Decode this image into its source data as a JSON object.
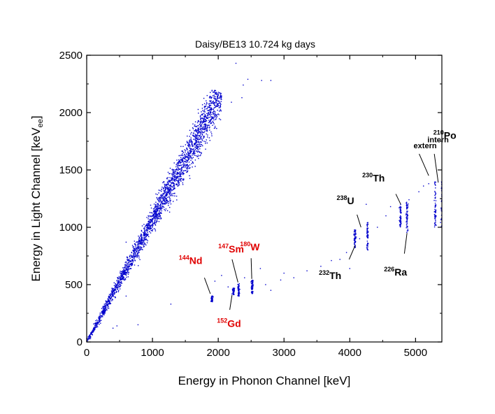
{
  "chart_data": {
    "type": "scatter",
    "title": "Daisy/BE13 10.724 kg days",
    "xlabel": "Energy in Phonon Channel [keV]",
    "ylabel": {
      "main": "Energy in Light Channel [keV",
      "subscript": "ee",
      "close": "]"
    },
    "xlim": [
      0,
      5400
    ],
    "ylim": [
      0,
      2500
    ],
    "xticks": [
      0,
      1000,
      2000,
      3000,
      4000,
      5000
    ],
    "yticks": [
      0,
      500,
      1000,
      1500,
      2000,
      2500
    ],
    "grid": false,
    "marker_color": "#0000cc",
    "series": [
      {
        "name": "gamma/beta band",
        "description": "dense band from origin",
        "x_range": [
          0,
          2050
        ],
        "y_range": [
          0,
          2200
        ],
        "slope_approx": 1.06
      },
      {
        "name": "144Nd",
        "x": 1905,
        "y_range": [
          350,
          400
        ]
      },
      {
        "name": "147Sm",
        "x": 2310,
        "y_range": [
          395,
          510
        ]
      },
      {
        "name": "152Gd",
        "x": 2230,
        "y_range": [
          410,
          470
        ]
      },
      {
        "name": "180W",
        "x": 2516,
        "y_range": [
          420,
          540
        ]
      },
      {
        "name": "232Th",
        "x": 4080,
        "y_range": [
          820,
          980
        ]
      },
      {
        "name": "238U",
        "x": 4270,
        "y_range": [
          800,
          1050
        ]
      },
      {
        "name": "230Th",
        "x": 4770,
        "y_range": [
          1000,
          1200
        ]
      },
      {
        "name": "226Ra",
        "x": 4870,
        "y_range": [
          950,
          1220
        ]
      },
      {
        "name": "210Po extern",
        "x": 5300,
        "y_range": [
          1000,
          1400
        ]
      },
      {
        "name": "210Po intern",
        "x": 5400,
        "y_range": [
          1000,
          1400
        ]
      }
    ],
    "scattered_points": [
      [
        2270,
        2430
      ],
      [
        2450,
        2290
      ],
      [
        2660,
        2280
      ],
      [
        2800,
        2280
      ],
      [
        2200,
        2090
      ],
      [
        2360,
        2130
      ],
      [
        2380,
        2240
      ],
      [
        600,
        870
      ],
      [
        400,
        120
      ],
      [
        460,
        140
      ],
      [
        600,
        400
      ],
      [
        780,
        150
      ],
      [
        1280,
        330
      ],
      [
        2640,
        640
      ],
      [
        2050,
        580
      ],
      [
        1950,
        530
      ],
      [
        2150,
        480
      ],
      [
        2720,
        500
      ],
      [
        2950,
        540
      ],
      [
        3150,
        560
      ],
      [
        3350,
        620
      ],
      [
        3560,
        660
      ],
      [
        3720,
        710
      ],
      [
        3850,
        720
      ],
      [
        3950,
        780
      ],
      [
        2400,
        560
      ],
      [
        2800,
        450
      ],
      [
        4150,
        900
      ],
      [
        4420,
        1000
      ],
      [
        4550,
        1100
      ],
      [
        4620,
        1180
      ],
      [
        4900,
        1240
      ],
      [
        5050,
        1310
      ],
      [
        5120,
        1360
      ],
      [
        5200,
        1380
      ],
      [
        3000,
        600
      ],
      [
        4000,
        640
      ],
      [
        4250,
        1200
      ],
      [
        1000,
        1010
      ],
      [
        1700,
        1600
      ]
    ],
    "annotations": [
      {
        "id": "po",
        "iso": "210",
        "sym": "Po",
        "x": 5270,
        "y": 1770,
        "color": "black"
      },
      {
        "id": "extern",
        "text": "extern",
        "x": 4970,
        "y": 1690,
        "color": "black",
        "line": [
          [
            5200,
            1450
          ],
          [
            5055,
            1640
          ]
        ]
      },
      {
        "id": "intern",
        "text": "intern",
        "x": 5180,
        "y": 1740,
        "color": "black",
        "line": [
          [
            5345,
            1390
          ],
          [
            5285,
            1640
          ]
        ]
      },
      {
        "id": "th230",
        "iso": "230",
        "sym": "Th",
        "x": 4190,
        "y": 1400,
        "color": "black",
        "line": [
          [
            4775,
            1200
          ],
          [
            4700,
            1290
          ]
        ]
      },
      {
        "id": "u238",
        "iso": "238",
        "sym": "U",
        "x": 3800,
        "y": 1200,
        "color": "black",
        "line": [
          [
            4170,
            1000
          ],
          [
            4110,
            1110
          ]
        ]
      },
      {
        "id": "th232",
        "iso": "232",
        "sym": "Th",
        "x": 3530,
        "y": 550,
        "color": "black",
        "line": [
          [
            4080,
            840
          ],
          [
            3990,
            720
          ]
        ]
      },
      {
        "id": "ra226",
        "iso": "226",
        "sym": "Ra",
        "x": 4520,
        "y": 580,
        "color": "black",
        "line": [
          [
            4870,
            950
          ],
          [
            4830,
            770
          ]
        ]
      },
      {
        "id": "nd144",
        "iso": "144",
        "sym": "Nd",
        "x": 1400,
        "y": 680,
        "color": "red",
        "line": [
          [
            1880,
            420
          ],
          [
            1790,
            560
          ]
        ]
      },
      {
        "id": "sm147",
        "iso": "147",
        "sym": "Sm",
        "x": 2000,
        "y": 780,
        "color": "red",
        "line": [
          [
            2300,
            520
          ],
          [
            2210,
            720
          ]
        ]
      },
      {
        "id": "w180",
        "iso": "180",
        "sym": "W",
        "x": 2330,
        "y": 800,
        "color": "red",
        "line": [
          [
            2510,
            550
          ],
          [
            2500,
            730
          ]
        ]
      },
      {
        "id": "gd152",
        "iso": "152",
        "sym": "Gd",
        "x": 1980,
        "y": 130,
        "color": "red",
        "line": [
          [
            2210,
            410
          ],
          [
            2175,
            280
          ]
        ]
      }
    ]
  }
}
